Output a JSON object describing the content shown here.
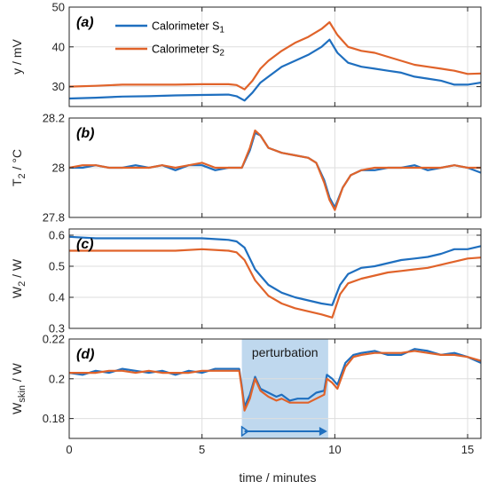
{
  "xlabel": "time / minutes",
  "xticks": [
    "0",
    "5",
    "10",
    "15"
  ],
  "colors": {
    "s1": "#1f6fbf",
    "s2": "#e0632a",
    "shade": "#a9cbe8",
    "arrow": "#1f6fbf"
  },
  "chart_data": [
    {
      "type": "line",
      "panel_label": "(a)",
      "ylabel_main": "y / mV",
      "ylabel_sub": "",
      "yticks": [
        "30",
        "40",
        "50"
      ],
      "ylim": [
        25,
        50
      ],
      "xlim": [
        0,
        15.5
      ],
      "grid": true,
      "legend": {
        "placement": "top-left",
        "entries": [
          {
            "name": "Calorimeter S",
            "sub": "1",
            "color": "#1f6fbf"
          },
          {
            "name": "Calorimeter S",
            "sub": "2",
            "color": "#e0632a"
          }
        ]
      },
      "series": [
        {
          "name": "Calorimeter S1",
          "color": "#1f6fbf",
          "x": [
            0,
            1,
            2,
            3,
            4,
            5,
            6,
            6.3,
            6.6,
            6.9,
            7.2,
            7.5,
            8,
            8.5,
            9,
            9.5,
            9.8,
            10.1,
            10.5,
            11,
            11.5,
            12,
            12.5,
            13,
            13.5,
            14,
            14.5,
            15,
            15.5
          ],
          "y": [
            27,
            27.2,
            27.5,
            27.6,
            27.8,
            27.9,
            28,
            27.6,
            26.5,
            28.5,
            31,
            32.5,
            35,
            36.5,
            38,
            40,
            41.8,
            38.5,
            36,
            35,
            34.5,
            34,
            33.5,
            32.5,
            32,
            31.5,
            30.5,
            30.5,
            31
          ]
        },
        {
          "name": "Calorimeter S2",
          "color": "#e0632a",
          "x": [
            0,
            1,
            2,
            3,
            4,
            5,
            6,
            6.3,
            6.6,
            6.9,
            7.2,
            7.5,
            8,
            8.5,
            9,
            9.5,
            9.8,
            10.1,
            10.5,
            11,
            11.5,
            12,
            12.5,
            13,
            13.5,
            14,
            14.5,
            15,
            15.5
          ],
          "y": [
            30,
            30.2,
            30.5,
            30.5,
            30.5,
            30.6,
            30.6,
            30.4,
            29.3,
            31.5,
            34.5,
            36.5,
            39,
            41,
            42.5,
            44.5,
            46.2,
            43,
            40,
            39,
            38.5,
            37.5,
            36.5,
            35.5,
            35,
            34.5,
            34,
            33.2,
            33.3
          ]
        }
      ]
    },
    {
      "type": "line",
      "panel_label": "(b)",
      "ylabel_main": "T",
      "ylabel_sub": "2",
      "ylabel_unit": " / °C",
      "yticks": [
        "27.8",
        "28",
        "28.2"
      ],
      "ylim": [
        27.8,
        28.2
      ],
      "xlim": [
        0,
        15.5
      ],
      "grid": true,
      "series": [
        {
          "name": "Calorimeter S1",
          "color": "#1f6fbf",
          "x": [
            0,
            0.5,
            1,
            1.5,
            2,
            2.5,
            3,
            3.5,
            4,
            4.5,
            5,
            5.5,
            6,
            6.5,
            6.8,
            7,
            7.2,
            7.5,
            8,
            8.5,
            9,
            9.3,
            9.6,
            9.8,
            10,
            10.3,
            10.6,
            11,
            11.5,
            12,
            12.5,
            13,
            13.5,
            14,
            14.5,
            15,
            15.5
          ],
          "y": [
            28,
            28,
            28.01,
            28,
            28,
            28.01,
            28,
            28.01,
            27.99,
            28.01,
            28.01,
            27.99,
            28,
            28,
            28.07,
            28.14,
            28.13,
            28.08,
            28.06,
            28.05,
            28.04,
            28.02,
            27.95,
            27.88,
            27.84,
            27.92,
            27.97,
            27.99,
            27.99,
            28,
            28,
            28.01,
            27.99,
            28,
            28.01,
            28,
            27.98
          ]
        },
        {
          "name": "Calorimeter S2",
          "color": "#e0632a",
          "x": [
            0,
            0.5,
            1,
            1.5,
            2,
            2.5,
            3,
            3.5,
            4,
            4.5,
            5,
            5.5,
            6,
            6.5,
            6.8,
            7,
            7.2,
            7.5,
            8,
            8.5,
            9,
            9.3,
            9.6,
            9.8,
            10,
            10.3,
            10.6,
            11,
            11.5,
            12,
            12.5,
            13,
            13.5,
            14,
            14.5,
            15,
            15.5
          ],
          "y": [
            28,
            28.01,
            28.01,
            28,
            28,
            28,
            28,
            28.01,
            28,
            28.01,
            28.02,
            28,
            28,
            28,
            28.08,
            28.15,
            28.13,
            28.08,
            28.06,
            28.05,
            28.04,
            28.02,
            27.94,
            27.87,
            27.83,
            27.92,
            27.97,
            27.99,
            28,
            28,
            28,
            28,
            28,
            28,
            28.01,
            28,
            28
          ]
        }
      ]
    },
    {
      "type": "line",
      "panel_label": "(c)",
      "ylabel_main": "W",
      "ylabel_sub": "2",
      "ylabel_unit": " / W",
      "yticks": [
        "0.3",
        "0.4",
        "0.5",
        "0.6"
      ],
      "ylim": [
        0.3,
        0.62
      ],
      "xlim": [
        0,
        15.5
      ],
      "grid": true,
      "series": [
        {
          "name": "Calorimeter S1",
          "color": "#1f6fbf",
          "x": [
            0,
            1,
            2,
            3,
            4,
            5,
            6,
            6.3,
            6.6,
            7,
            7.5,
            8,
            8.5,
            9,
            9.5,
            9.9,
            10.2,
            10.5,
            11,
            11.5,
            12,
            12.5,
            13,
            13.5,
            14,
            14.5,
            15,
            15.5
          ],
          "y": [
            0.595,
            0.59,
            0.59,
            0.59,
            0.59,
            0.59,
            0.585,
            0.58,
            0.56,
            0.49,
            0.44,
            0.415,
            0.4,
            0.39,
            0.38,
            0.375,
            0.44,
            0.475,
            0.495,
            0.5,
            0.51,
            0.52,
            0.525,
            0.53,
            0.54,
            0.555,
            0.555,
            0.565
          ]
        },
        {
          "name": "Calorimeter S2",
          "color": "#e0632a",
          "x": [
            0,
            1,
            2,
            3,
            4,
            5,
            6,
            6.3,
            6.6,
            7,
            7.5,
            8,
            8.5,
            9,
            9.5,
            9.9,
            10.2,
            10.5,
            11,
            11.5,
            12,
            12.5,
            13,
            13.5,
            14,
            14.5,
            15,
            15.5
          ],
          "y": [
            0.55,
            0.55,
            0.55,
            0.55,
            0.55,
            0.555,
            0.55,
            0.545,
            0.52,
            0.455,
            0.405,
            0.38,
            0.365,
            0.355,
            0.345,
            0.335,
            0.41,
            0.445,
            0.46,
            0.47,
            0.48,
            0.485,
            0.49,
            0.495,
            0.505,
            0.515,
            0.525,
            0.528
          ]
        }
      ]
    },
    {
      "type": "line",
      "panel_label": "(d)",
      "ylabel_main": "W",
      "ylabel_sub": "skin",
      "ylabel_unit": " / W",
      "yticks": [
        "0.18",
        "0.2",
        "0.22"
      ],
      "ylim": [
        0.17,
        0.22
      ],
      "xlim": [
        0,
        15.5
      ],
      "grid": true,
      "annotation": {
        "text": "perturbation",
        "x_start": 6.5,
        "x_end": 9.75
      },
      "series": [
        {
          "name": "Calorimeter S1",
          "color": "#1f6fbf",
          "x": [
            0,
            0.5,
            1,
            1.5,
            2,
            2.5,
            3,
            3.5,
            4,
            4.5,
            5,
            5.5,
            6,
            6.4,
            6.5,
            6.6,
            6.8,
            7,
            7.2,
            7.5,
            7.8,
            8,
            8.3,
            8.6,
            9,
            9.3,
            9.6,
            9.7,
            9.9,
            10.1,
            10.4,
            10.7,
            11,
            11.5,
            12,
            12.5,
            13,
            13.5,
            14,
            14.5,
            15,
            15.5
          ],
          "y": [
            0.203,
            0.202,
            0.204,
            0.203,
            0.205,
            0.204,
            0.203,
            0.204,
            0.202,
            0.204,
            0.203,
            0.205,
            0.205,
            0.205,
            0.196,
            0.186,
            0.192,
            0.201,
            0.195,
            0.193,
            0.191,
            0.192,
            0.189,
            0.19,
            0.19,
            0.193,
            0.194,
            0.202,
            0.2,
            0.197,
            0.208,
            0.212,
            0.213,
            0.214,
            0.212,
            0.212,
            0.215,
            0.214,
            0.212,
            0.213,
            0.211,
            0.208
          ]
        },
        {
          "name": "Calorimeter S2",
          "color": "#e0632a",
          "x": [
            0,
            0.5,
            1,
            1.5,
            2,
            2.5,
            3,
            3.5,
            4,
            4.5,
            5,
            5.5,
            6,
            6.4,
            6.5,
            6.6,
            6.8,
            7,
            7.2,
            7.5,
            7.8,
            8,
            8.3,
            8.6,
            9,
            9.3,
            9.6,
            9.7,
            9.9,
            10.1,
            10.4,
            10.7,
            11,
            11.5,
            12,
            12.5,
            13,
            13.5,
            14,
            14.5,
            15,
            15.5
          ],
          "y": [
            0.203,
            0.203,
            0.203,
            0.204,
            0.204,
            0.203,
            0.204,
            0.203,
            0.203,
            0.203,
            0.204,
            0.204,
            0.204,
            0.204,
            0.195,
            0.184,
            0.19,
            0.2,
            0.194,
            0.191,
            0.189,
            0.19,
            0.188,
            0.188,
            0.188,
            0.19,
            0.192,
            0.2,
            0.198,
            0.195,
            0.206,
            0.211,
            0.212,
            0.213,
            0.213,
            0.213,
            0.214,
            0.213,
            0.212,
            0.212,
            0.211,
            0.209
          ]
        }
      ]
    }
  ]
}
